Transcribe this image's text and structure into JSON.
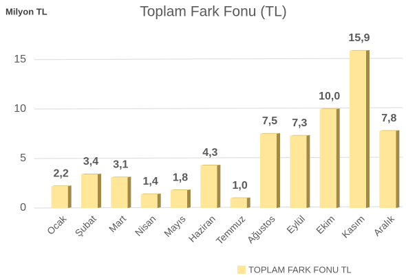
{
  "chart_data": {
    "type": "bar",
    "title": "Toplam Fark Fonu (TL)",
    "y_label": "Milyon TL",
    "categories": [
      "Ocak",
      "Şubat",
      "Mart",
      "Nisan",
      "Mayıs",
      "Haziran",
      "Temmuz",
      "Ağustos",
      "Eylül",
      "Ekim",
      "Kasım",
      "Aralık"
    ],
    "series": [
      {
        "name": "TOPLAM FARK FONU TL",
        "color": "#ffe699",
        "values": [
          2.2,
          3.4,
          3.1,
          1.4,
          1.8,
          4.3,
          1.0,
          7.5,
          7.3,
          10.0,
          15.9,
          7.8
        ],
        "value_labels": [
          "2,2",
          "3,4",
          "3,1",
          "1,4",
          "1,8",
          "4,3",
          "1,0",
          "7,5",
          "7,3",
          "10,0",
          "15,9",
          "7,8"
        ]
      }
    ],
    "ylim": [
      0,
      17
    ],
    "yticks": [
      0,
      5,
      10,
      15
    ],
    "grid": true,
    "legend": "bottom"
  }
}
